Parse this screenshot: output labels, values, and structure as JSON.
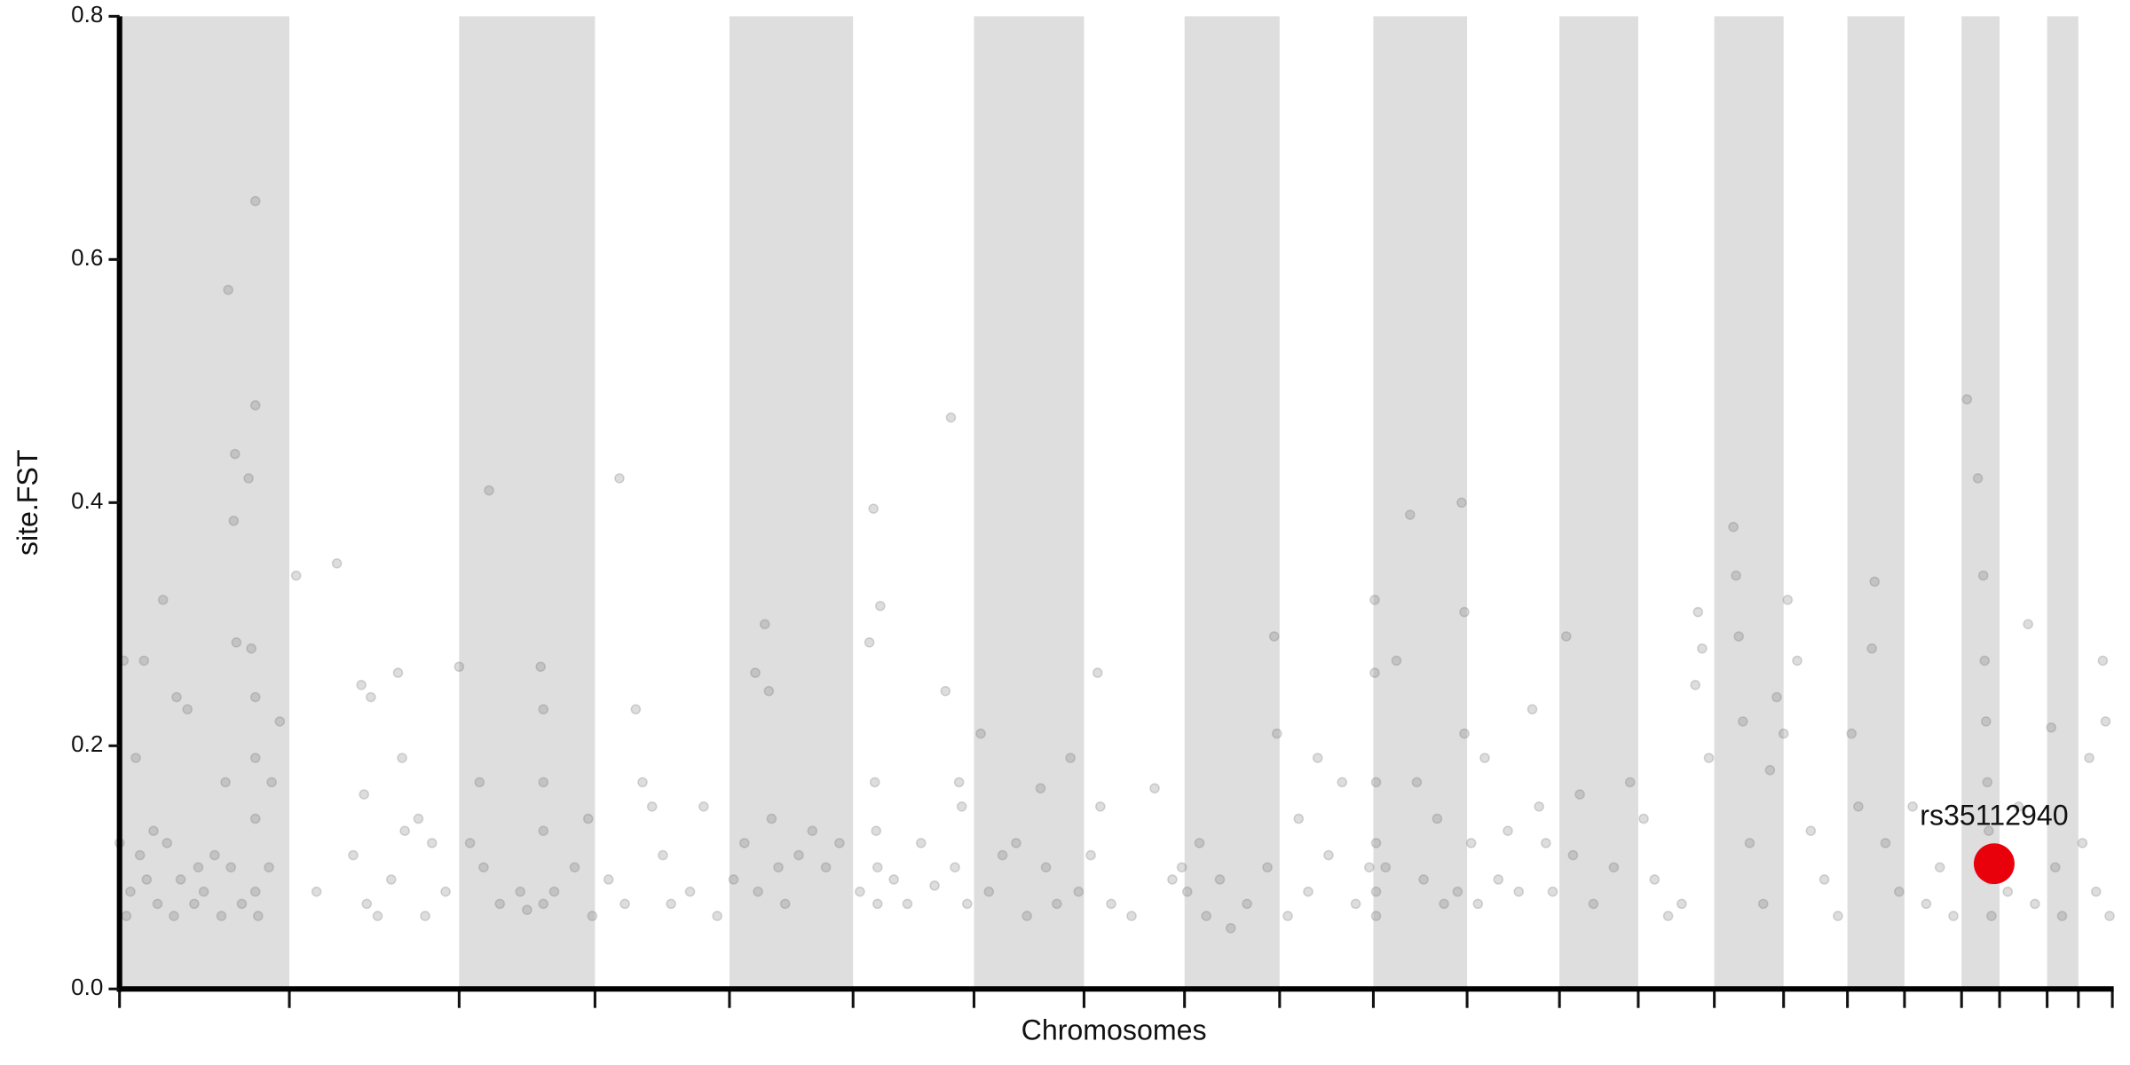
{
  "chart_data": {
    "type": "scatter",
    "x_label": "Chromosomes",
    "y_label": "site.FST",
    "xlim": [
      0,
      1468
    ],
    "ylim": [
      0,
      0.8
    ],
    "yticks": [
      {
        "value": 0,
        "label": "0.0"
      },
      0.2,
      0.4,
      0.6,
      0.8
    ],
    "chromosome_bounds": [
      0,
      125,
      250,
      350,
      449,
      540,
      629,
      710,
      784,
      854,
      923,
      992,
      1060,
      1118,
      1174,
      1225,
      1272,
      1314,
      1356,
      1384,
      1419,
      1442,
      1467
    ],
    "band_color": "#dedede",
    "color": "#666666",
    "x": [
      0,
      3,
      5,
      8,
      12,
      15,
      18,
      20,
      25,
      28,
      32,
      35,
      40,
      42,
      45,
      50,
      55,
      58,
      62,
      70,
      75,
      78,
      80,
      82,
      84,
      85,
      86,
      90,
      95,
      97,
      100,
      100,
      100,
      100,
      100,
      100,
      102,
      110,
      112,
      118,
      130,
      145,
      160,
      172,
      178,
      180,
      182,
      185,
      190,
      200,
      205,
      208,
      210,
      220,
      225,
      230,
      240,
      250,
      258,
      265,
      268,
      272,
      280,
      295,
      300,
      310,
      312,
      312,
      312,
      312,
      320,
      335,
      345,
      348,
      360,
      368,
      372,
      380,
      385,
      392,
      400,
      406,
      420,
      430,
      440,
      452,
      460,
      468,
      470,
      475,
      478,
      480,
      485,
      490,
      500,
      510,
      520,
      530,
      545,
      552,
      555,
      556,
      557,
      558,
      558,
      560,
      570,
      580,
      590,
      600,
      608,
      612,
      615,
      618,
      620,
      624,
      634,
      640,
      650,
      660,
      668,
      678,
      682,
      690,
      700,
      706,
      715,
      720,
      722,
      730,
      745,
      762,
      775,
      782,
      786,
      795,
      800,
      810,
      818,
      830,
      845,
      850,
      852,
      860,
      868,
      875,
      882,
      890,
      900,
      910,
      920,
      924,
      924,
      925,
      925,
      925,
      925,
      932,
      940,
      950,
      955,
      960,
      970,
      975,
      985,
      988,
      990,
      990,
      995,
      1000,
      1005,
      1015,
      1022,
      1030,
      1040,
      1045,
      1050,
      1055,
      1065,
      1070,
      1075,
      1085,
      1100,
      1112,
      1122,
      1130,
      1140,
      1150,
      1160,
      1162,
      1165,
      1170,
      1188,
      1190,
      1192,
      1195,
      1200,
      1210,
      1215,
      1220,
      1225,
      1228,
      1235,
      1245,
      1255,
      1265,
      1275,
      1280,
      1290,
      1292,
      1300,
      1310,
      1320,
      1330,
      1340,
      1350,
      1360,
      1368,
      1372,
      1373,
      1374,
      1375,
      1376,
      1377,
      1378,
      1380,
      1390,
      1398,
      1405,
      1410,
      1422,
      1425,
      1430,
      1445,
      1450,
      1455,
      1460,
      1462,
      1465
    ],
    "values": [
      0.12,
      0.27,
      0.06,
      0.08,
      0.19,
      0.11,
      0.27,
      0.09,
      0.13,
      0.07,
      0.32,
      0.12,
      0.06,
      0.24,
      0.09,
      0.23,
      0.07,
      0.1,
      0.08,
      0.11,
      0.06,
      0.17,
      0.575,
      0.1,
      0.385,
      0.44,
      0.285,
      0.07,
      0.42,
      0.28,
      0.48,
      0.648,
      0.24,
      0.19,
      0.14,
      0.08,
      0.06,
      0.1,
      0.17,
      0.22,
      0.34,
      0.08,
      0.35,
      0.11,
      0.25,
      0.16,
      0.07,
      0.24,
      0.06,
      0.09,
      0.26,
      0.19,
      0.13,
      0.14,
      0.06,
      0.12,
      0.08,
      0.265,
      0.12,
      0.17,
      0.1,
      0.41,
      0.07,
      0.08,
      0.065,
      0.265,
      0.23,
      0.17,
      0.13,
      0.07,
      0.08,
      0.1,
      0.14,
      0.06,
      0.09,
      0.42,
      0.07,
      0.23,
      0.17,
      0.15,
      0.11,
      0.07,
      0.08,
      0.15,
      0.06,
      0.09,
      0.12,
      0.26,
      0.08,
      0.3,
      0.245,
      0.14,
      0.1,
      0.07,
      0.11,
      0.13,
      0.1,
      0.12,
      0.08,
      0.285,
      0.395,
      0.17,
      0.13,
      0.1,
      0.07,
      0.315,
      0.09,
      0.07,
      0.12,
      0.085,
      0.245,
      0.47,
      0.1,
      0.17,
      0.15,
      0.07,
      0.21,
      0.08,
      0.11,
      0.12,
      0.06,
      0.165,
      0.1,
      0.07,
      0.19,
      0.08,
      0.11,
      0.26,
      0.15,
      0.07,
      0.06,
      0.165,
      0.09,
      0.1,
      0.08,
      0.12,
      0.06,
      0.09,
      0.05,
      0.07,
      0.1,
      0.29,
      0.21,
      0.06,
      0.14,
      0.08,
      0.19,
      0.11,
      0.17,
      0.07,
      0.1,
      0.32,
      0.26,
      0.17,
      0.12,
      0.08,
      0.06,
      0.1,
      0.27,
      0.39,
      0.17,
      0.09,
      0.14,
      0.07,
      0.08,
      0.4,
      0.31,
      0.21,
      0.12,
      0.07,
      0.19,
      0.09,
      0.13,
      0.08,
      0.23,
      0.15,
      0.12,
      0.08,
      0.29,
      0.11,
      0.16,
      0.07,
      0.1,
      0.17,
      0.14,
      0.09,
      0.06,
      0.07,
      0.25,
      0.31,
      0.28,
      0.19,
      0.38,
      0.34,
      0.29,
      0.22,
      0.12,
      0.07,
      0.18,
      0.24,
      0.21,
      0.32,
      0.27,
      0.13,
      0.09,
      0.06,
      0.21,
      0.15,
      0.28,
      0.335,
      0.12,
      0.08,
      0.15,
      0.07,
      0.1,
      0.06,
      0.485,
      0.42,
      0.34,
      0.27,
      0.22,
      0.17,
      0.13,
      0.09,
      0.06,
      0.11,
      0.08,
      0.15,
      0.3,
      0.07,
      0.215,
      0.1,
      0.06,
      0.12,
      0.19,
      0.08,
      0.27,
      0.22,
      0.06
    ],
    "highlight": {
      "label": "rs35112940",
      "x": 1380,
      "value": 0.103,
      "color": "#e8000b"
    }
  }
}
